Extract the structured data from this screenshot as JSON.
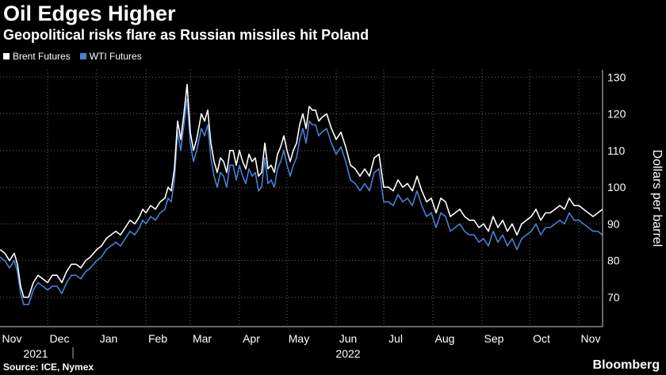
{
  "header": {
    "title": "Oil Edges Higher",
    "subtitle": "Geopolitical risks flare as Russian missiles hit Poland"
  },
  "legend": {
    "items": [
      {
        "label": "Brent Futures",
        "color": "#ffffff"
      },
      {
        "label": "WTI Futures",
        "color": "#4a7fd4"
      }
    ]
  },
  "footer": {
    "source": "Source: ICE, Nymex",
    "brand": "Bloomberg"
  },
  "chart_data": {
    "type": "line",
    "ylabel": "Dollars per barrel",
    "ylim": [
      62,
      132
    ],
    "yticks": [
      70,
      80,
      90,
      100,
      110,
      120,
      130
    ],
    "xlim": [
      0,
      380
    ],
    "month_ticks": [
      {
        "label": "Nov",
        "x": 0
      },
      {
        "label": "Dec",
        "x": 30
      },
      {
        "label": "Jan",
        "x": 61
      },
      {
        "label": "Feb",
        "x": 92
      },
      {
        "label": "Mar",
        "x": 120
      },
      {
        "label": "Apr",
        "x": 151
      },
      {
        "label": "May",
        "x": 181
      },
      {
        "label": "Jun",
        "x": 212
      },
      {
        "label": "Jul",
        "x": 242
      },
      {
        "label": "Aug",
        "x": 273
      },
      {
        "label": "Sep",
        "x": 304
      },
      {
        "label": "Oct",
        "x": 334
      },
      {
        "label": "Nov",
        "x": 365
      }
    ],
    "year_labels": [
      {
        "label": "2021",
        "x": 15
      },
      {
        "label": "2022",
        "x": 212
      }
    ],
    "year_divider_x": 46,
    "series": [
      {
        "name": "Brent Futures",
        "color": "#ffffff",
        "points": [
          [
            0,
            83
          ],
          [
            3,
            82
          ],
          [
            6,
            80
          ],
          [
            9,
            82
          ],
          [
            11,
            79
          ],
          [
            13,
            73
          ],
          [
            15,
            70
          ],
          [
            18,
            70
          ],
          [
            21,
            74
          ],
          [
            24,
            76
          ],
          [
            27,
            75
          ],
          [
            30,
            74
          ],
          [
            33,
            76
          ],
          [
            36,
            76
          ],
          [
            39,
            74
          ],
          [
            42,
            77
          ],
          [
            45,
            79
          ],
          [
            48,
            79
          ],
          [
            51,
            78
          ],
          [
            54,
            80
          ],
          [
            57,
            81
          ],
          [
            61,
            83
          ],
          [
            64,
            84
          ],
          [
            67,
            86
          ],
          [
            70,
            87
          ],
          [
            73,
            88
          ],
          [
            76,
            87
          ],
          [
            79,
            89
          ],
          [
            82,
            91
          ],
          [
            85,
            90
          ],
          [
            88,
            92
          ],
          [
            90,
            94
          ],
          [
            92,
            93
          ],
          [
            95,
            95
          ],
          [
            98,
            94
          ],
          [
            101,
            96
          ],
          [
            104,
            97
          ],
          [
            106,
            100
          ],
          [
            108,
            99
          ],
          [
            110,
            105
          ],
          [
            112,
            118
          ],
          [
            114,
            113
          ],
          [
            116,
            120
          ],
          [
            118,
            128
          ],
          [
            120,
            115
          ],
          [
            122,
            110
          ],
          [
            124,
            113
          ],
          [
            127,
            120
          ],
          [
            129,
            118
          ],
          [
            131,
            121
          ],
          [
            133,
            112
          ],
          [
            135,
            107
          ],
          [
            137,
            104
          ],
          [
            139,
            108
          ],
          [
            141,
            107
          ],
          [
            143,
            104
          ],
          [
            145,
            110
          ],
          [
            147,
            110
          ],
          [
            149,
            106
          ],
          [
            151,
            110
          ],
          [
            153,
            107
          ],
          [
            155,
            105
          ],
          [
            157,
            109
          ],
          [
            159,
            107
          ],
          [
            161,
            108
          ],
          [
            163,
            103
          ],
          [
            165,
            104
          ],
          [
            167,
            112
          ],
          [
            169,
            105
          ],
          [
            171,
            106
          ],
          [
            173,
            104
          ],
          [
            175,
            109
          ],
          [
            177,
            111
          ],
          [
            179,
            114
          ],
          [
            181,
            110
          ],
          [
            183,
            107
          ],
          [
            185,
            110
          ],
          [
            187,
            112
          ],
          [
            189,
            117
          ],
          [
            191,
            120
          ],
          [
            193,
            116
          ],
          [
            195,
            122
          ],
          [
            197,
            121
          ],
          [
            199,
            121
          ],
          [
            201,
            118
          ],
          [
            203,
            119
          ],
          [
            206,
            120
          ],
          [
            209,
            116
          ],
          [
            212,
            113
          ],
          [
            215,
            115
          ],
          [
            218,
            111
          ],
          [
            221,
            106
          ],
          [
            224,
            105
          ],
          [
            227,
            103
          ],
          [
            230,
            105
          ],
          [
            233,
            103
          ],
          [
            236,
            108
          ],
          [
            239,
            109
          ],
          [
            242,
            100
          ],
          [
            245,
            100
          ],
          [
            248,
            99
          ],
          [
            251,
            102
          ],
          [
            254,
            100
          ],
          [
            257,
            101
          ],
          [
            260,
            99
          ],
          [
            263,
            103
          ],
          [
            266,
            99
          ],
          [
            269,
            96
          ],
          [
            272,
            97
          ],
          [
            275,
            93
          ],
          [
            278,
            97
          ],
          [
            281,
            96
          ],
          [
            284,
            92
          ],
          [
            287,
            93
          ],
          [
            290,
            94
          ],
          [
            293,
            92
          ],
          [
            296,
            91
          ],
          [
            299,
            91
          ],
          [
            302,
            89
          ],
          [
            305,
            90
          ],
          [
            308,
            88
          ],
          [
            311,
            92
          ],
          [
            314,
            89
          ],
          [
            317,
            91
          ],
          [
            320,
            88
          ],
          [
            323,
            90
          ],
          [
            326,
            87
          ],
          [
            329,
            90
          ],
          [
            332,
            91
          ],
          [
            335,
            92
          ],
          [
            338,
            94
          ],
          [
            341,
            91
          ],
          [
            344,
            93
          ],
          [
            347,
            93
          ],
          [
            350,
            94
          ],
          [
            353,
            95
          ],
          [
            356,
            94
          ],
          [
            359,
            97
          ],
          [
            362,
            95
          ],
          [
            365,
            95
          ],
          [
            368,
            94
          ],
          [
            371,
            93
          ],
          [
            374,
            92
          ],
          [
            377,
            93
          ],
          [
            380,
            94
          ]
        ]
      },
      {
        "name": "WTI Futures",
        "color": "#4a7fd4",
        "points": [
          [
            0,
            81
          ],
          [
            3,
            80
          ],
          [
            6,
            78
          ],
          [
            9,
            80
          ],
          [
            11,
            77
          ],
          [
            13,
            71
          ],
          [
            15,
            68
          ],
          [
            18,
            68
          ],
          [
            21,
            72
          ],
          [
            24,
            74
          ],
          [
            27,
            73
          ],
          [
            30,
            72
          ],
          [
            33,
            73
          ],
          [
            36,
            73
          ],
          [
            39,
            71
          ],
          [
            42,
            74
          ],
          [
            45,
            76
          ],
          [
            48,
            76
          ],
          [
            51,
            75
          ],
          [
            54,
            77
          ],
          [
            57,
            78
          ],
          [
            61,
            80
          ],
          [
            64,
            81
          ],
          [
            67,
            83
          ],
          [
            70,
            84
          ],
          [
            73,
            85
          ],
          [
            76,
            84
          ],
          [
            79,
            86
          ],
          [
            82,
            88
          ],
          [
            85,
            87
          ],
          [
            88,
            89
          ],
          [
            90,
            91
          ],
          [
            92,
            90
          ],
          [
            95,
            92
          ],
          [
            98,
            91
          ],
          [
            101,
            93
          ],
          [
            104,
            94
          ],
          [
            106,
            97
          ],
          [
            108,
            96
          ],
          [
            110,
            102
          ],
          [
            112,
            115
          ],
          [
            114,
            110
          ],
          [
            116,
            117
          ],
          [
            118,
            124
          ],
          [
            120,
            112
          ],
          [
            122,
            107
          ],
          [
            124,
            110
          ],
          [
            127,
            116
          ],
          [
            129,
            114
          ],
          [
            131,
            117
          ],
          [
            133,
            108
          ],
          [
            135,
            103
          ],
          [
            137,
            100
          ],
          [
            139,
            104
          ],
          [
            141,
            103
          ],
          [
            143,
            100
          ],
          [
            145,
            106
          ],
          [
            147,
            106
          ],
          [
            149,
            102
          ],
          [
            151,
            106
          ],
          [
            153,
            103
          ],
          [
            155,
            101
          ],
          [
            157,
            105
          ],
          [
            159,
            103
          ],
          [
            161,
            104
          ],
          [
            163,
            99
          ],
          [
            165,
            100
          ],
          [
            167,
            108
          ],
          [
            169,
            101
          ],
          [
            171,
            102
          ],
          [
            173,
            100
          ],
          [
            175,
            105
          ],
          [
            177,
            107
          ],
          [
            179,
            110
          ],
          [
            181,
            106
          ],
          [
            183,
            103
          ],
          [
            185,
            106
          ],
          [
            187,
            108
          ],
          [
            189,
            113
          ],
          [
            191,
            116
          ],
          [
            193,
            112
          ],
          [
            195,
            118
          ],
          [
            197,
            117
          ],
          [
            199,
            117
          ],
          [
            201,
            114
          ],
          [
            203,
            115
          ],
          [
            206,
            116
          ],
          [
            209,
            112
          ],
          [
            212,
            109
          ],
          [
            215,
            111
          ],
          [
            218,
            107
          ],
          [
            221,
            102
          ],
          [
            224,
            101
          ],
          [
            227,
            99
          ],
          [
            230,
            101
          ],
          [
            233,
            99
          ],
          [
            236,
            104
          ],
          [
            239,
            105
          ],
          [
            242,
            96
          ],
          [
            245,
            96
          ],
          [
            248,
            95
          ],
          [
            251,
            98
          ],
          [
            254,
            96
          ],
          [
            257,
            97
          ],
          [
            260,
            95
          ],
          [
            263,
            99
          ],
          [
            266,
            95
          ],
          [
            269,
            92
          ],
          [
            272,
            93
          ],
          [
            275,
            89
          ],
          [
            278,
            93
          ],
          [
            281,
            92
          ],
          [
            284,
            88
          ],
          [
            287,
            89
          ],
          [
            290,
            90
          ],
          [
            293,
            88
          ],
          [
            296,
            87
          ],
          [
            299,
            87
          ],
          [
            302,
            85
          ],
          [
            305,
            86
          ],
          [
            308,
            84
          ],
          [
            311,
            88
          ],
          [
            314,
            85
          ],
          [
            317,
            87
          ],
          [
            320,
            84
          ],
          [
            323,
            86
          ],
          [
            326,
            83
          ],
          [
            329,
            86
          ],
          [
            332,
            87
          ],
          [
            335,
            88
          ],
          [
            338,
            90
          ],
          [
            341,
            87
          ],
          [
            344,
            89
          ],
          [
            347,
            89
          ],
          [
            350,
            90
          ],
          [
            353,
            91
          ],
          [
            356,
            90
          ],
          [
            359,
            93
          ],
          [
            362,
            91
          ],
          [
            365,
            91
          ],
          [
            368,
            90
          ],
          [
            371,
            89
          ],
          [
            374,
            88
          ],
          [
            377,
            88
          ],
          [
            380,
            87
          ]
        ]
      }
    ]
  }
}
